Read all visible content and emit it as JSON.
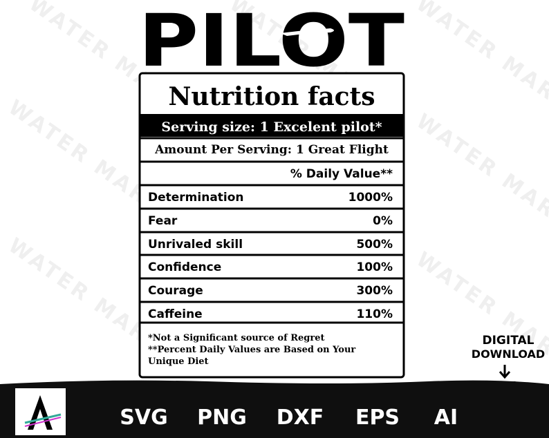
{
  "header": {
    "title": "PILOT"
  },
  "label": {
    "heading": "Nutrition facts",
    "serving": "Serving size: 1 Excelent pilot*",
    "amount": "Amount Per Serving: 1 Great Flight",
    "daily_value_header": "% Daily Value**",
    "rows": [
      {
        "name": "Determination",
        "value": "1000%"
      },
      {
        "name": "Fear",
        "value": "0%"
      },
      {
        "name": "Unrivaled skill",
        "value": "500%"
      },
      {
        "name": "Confidence",
        "value": "100%"
      },
      {
        "name": "Courage",
        "value": "300%"
      },
      {
        "name": "Caffeine",
        "value": "110%"
      }
    ],
    "footnotes": [
      "*Not a Significant source of Regret",
      "**Percent Daily Values are Based on Your",
      "Unique Diet"
    ]
  },
  "download": {
    "line1": "DIGITAL",
    "line2": "DOWNLOAD"
  },
  "formats": [
    "SVG",
    "PNG",
    "DXF",
    "EPS",
    "AI"
  ],
  "watermark": "WATER MARK"
}
